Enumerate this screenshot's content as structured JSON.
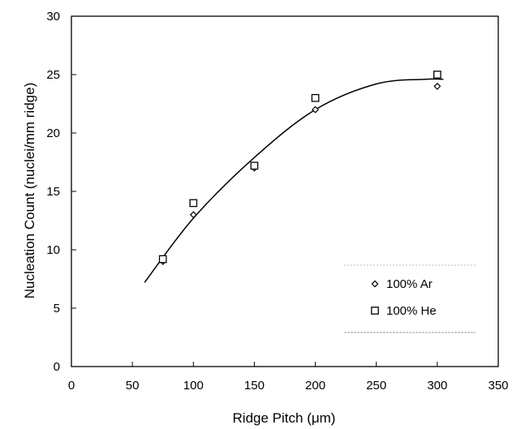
{
  "chart_data": {
    "type": "scatter",
    "title": "",
    "xlabel": "Ridge Pitch (μm)",
    "ylabel": "Nucleation Count (nuclei/mm ridge)",
    "xlim": [
      0,
      350
    ],
    "ylim": [
      0,
      30
    ],
    "x_ticks": [
      0,
      50,
      100,
      150,
      200,
      250,
      300,
      350
    ],
    "y_ticks": [
      0,
      5,
      10,
      15,
      20,
      25,
      30
    ],
    "grid": false,
    "legend_position": "bottom-right",
    "series": [
      {
        "name": "100% Ar",
        "marker": "diamond",
        "x": [
          75,
          100,
          150,
          200,
          300
        ],
        "y": [
          9,
          13,
          17,
          22,
          24
        ]
      },
      {
        "name": "100% He",
        "marker": "square",
        "x": [
          75,
          100,
          150,
          200,
          300
        ],
        "y": [
          9.2,
          14,
          17.2,
          23,
          25
        ]
      }
    ],
    "trendline": {
      "type": "polynomial",
      "x_range": [
        60,
        305
      ],
      "points_x": [
        60,
        100,
        150,
        200,
        250,
        290,
        305
      ],
      "points_y": [
        7.2,
        12.7,
        17.9,
        22.0,
        24.2,
        24.6,
        24.6
      ]
    }
  }
}
